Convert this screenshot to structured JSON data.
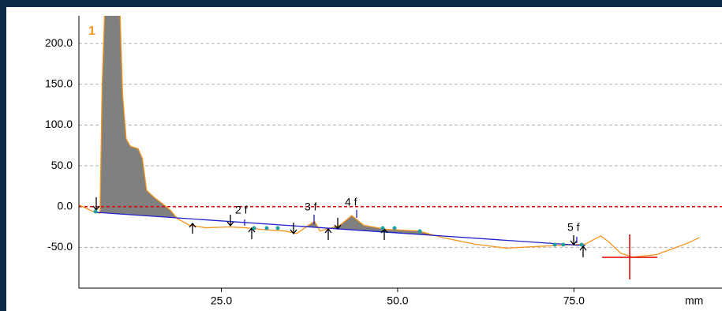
{
  "chart_data": {
    "type": "line",
    "x_label": "mm",
    "series": [
      {
        "name": "trace",
        "color": "#f7941d",
        "x": [
          4.8,
          7.1,
          7.8,
          8.1,
          8.7,
          10.4,
          11.0,
          11.5,
          12.1,
          13.2,
          13.8,
          14.4,
          15.5,
          16.6,
          17.7,
          18.8,
          20.5,
          22.8,
          26.1,
          28.4,
          30.6,
          34.0,
          35.7,
          38.2,
          39.0,
          41.8,
          43.5,
          45.2,
          48.5,
          53.0,
          56.4,
          60.9,
          65.4,
          69.8,
          74.3,
          76.6,
          78.8,
          79.9,
          81.6,
          83.3,
          86.7,
          88.9,
          91.1,
          92.8
        ],
        "values": [
          2,
          -7,
          -8,
          150,
          300,
          300,
          137,
          83,
          74,
          71,
          59,
          20,
          11,
          4,
          -4,
          -15,
          -23,
          -26,
          -25,
          -26,
          -28,
          -30,
          -33,
          -18,
          -30,
          -23,
          -11,
          -23,
          -28,
          -30,
          -38,
          -46,
          -51,
          -49,
          -47,
          -46,
          -36,
          -43,
          -57,
          -62,
          -59,
          -52,
          -45,
          -38
        ]
      },
      {
        "name": "baseline",
        "color": "#2020d0",
        "x": [
          7.1,
          76.6
        ],
        "values": [
          -7,
          -48
        ]
      }
    ],
    "fill_color": "#808080",
    "zero_line_color": "#e00000",
    "annotations": [
      "1",
      "2 f",
      "3 f",
      "4 f",
      "5 f"
    ],
    "xlim": [
      4.8,
      96
    ],
    "xticks": [
      {
        "value": 25,
        "label": "25.0"
      },
      {
        "value": 50,
        "label": "50.0"
      },
      {
        "value": 75,
        "label": "75.0"
      }
    ],
    "ylim": [
      -100,
      234
    ],
    "yticks": [
      {
        "value": -50,
        "label": "-50.0"
      },
      {
        "value": 0,
        "label": "0.0"
      },
      {
        "value": 50,
        "label": "50.0"
      },
      {
        "value": 100,
        "label": "100.0"
      },
      {
        "value": 150,
        "label": "150.0"
      },
      {
        "value": 200,
        "label": "200.0"
      }
    ],
    "grid": true
  }
}
